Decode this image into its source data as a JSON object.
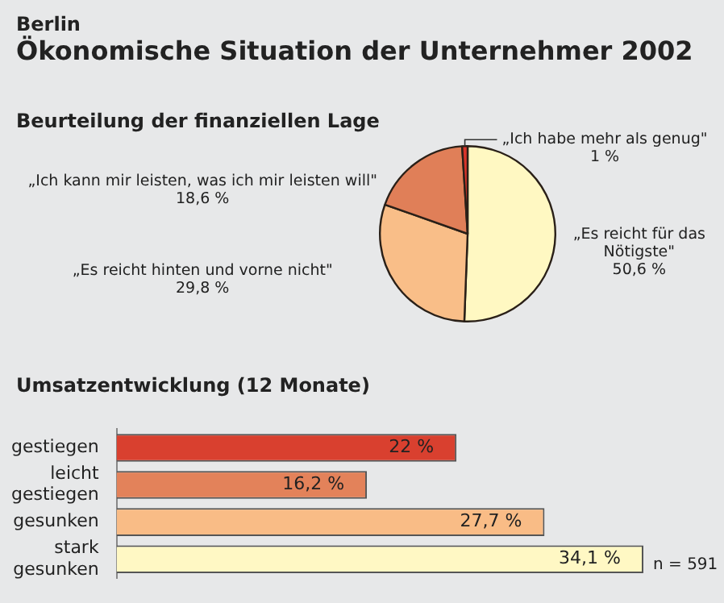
{
  "chart_data": [
    {
      "type": "pie",
      "title": "Beurteilung der finanziellen Lage",
      "annotations": [
        "Berlin",
        "Ökonomische Situation der Unternehmer 2002"
      ],
      "categories": [
        "„Es reicht für das Nötigste\"",
        "„Es reicht hinten und vorne nicht\"",
        "„Ich kann mir leisten, was ich mir leisten will\"",
        "„Ich habe mehr als genug\""
      ],
      "values": [
        50.6,
        29.8,
        18.6,
        1
      ],
      "value_labels": [
        "50,6 %",
        "29,8 %",
        "18,6 %",
        "1 %"
      ],
      "colors": [
        "#fff8c2",
        "#f9be88",
        "#e07f58",
        "#d9342a"
      ]
    },
    {
      "type": "bar",
      "orientation": "horizontal",
      "title": "Umsatzentwicklung (12 Monate)",
      "annotations": [
        "n = 591"
      ],
      "categories": [
        "gestiegen",
        "leicht gestiegen",
        "gesunken",
        "stark gesunken"
      ],
      "values": [
        22,
        16.2,
        27.7,
        34.1
      ],
      "value_labels": [
        "22 %",
        "16,2 %",
        "27,7 %",
        "34,1 %"
      ],
      "colors": [
        "#d9402f",
        "#e3825a",
        "#f9bc86",
        "#fff8c4"
      ]
    }
  ]
}
